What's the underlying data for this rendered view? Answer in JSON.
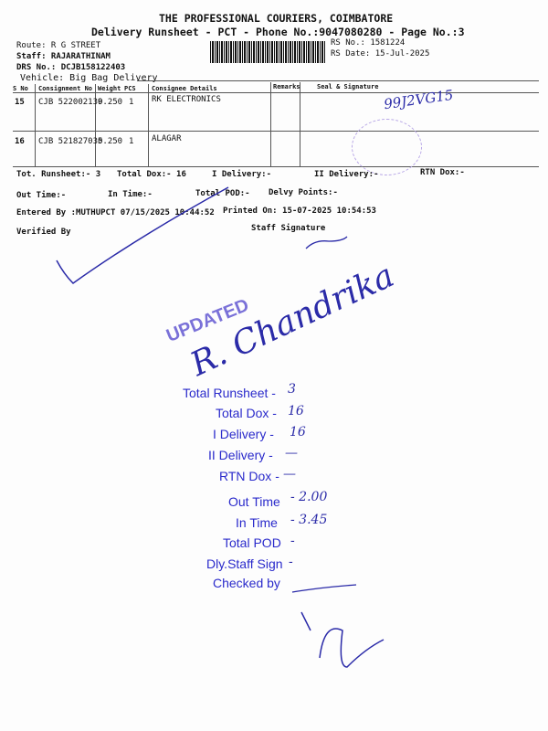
{
  "header": {
    "company": "THE PROFESSIONAL COURIERS, COIMBATORE",
    "subtitle": "Delivery Runsheet - PCT - Phone No.:9047080280 - Page No.:3",
    "route": "Route: R G STREET",
    "staff": "Staff: RAJARATHINAM",
    "drs": "DRS No.: DCJB158122403",
    "vehicle": "Vehicle: Big Bag Delivery",
    "rs_no": "RS No.: 1581224",
    "rs_date": "RS Date: 15-Jul-2025"
  },
  "table": {
    "columns": [
      "S No",
      "Consignment No",
      "Weight",
      "PCS",
      "Consignee Details",
      "Remarks",
      "Seal & Signature"
    ],
    "rows": [
      {
        "sno": "15",
        "consignment": "CJB 522002139",
        "weight": "0.250",
        "pcs": "1",
        "consignee": "RK ELECTRONICS",
        "signature": "99J2VG15"
      },
      {
        "sno": "16",
        "consignment": "CJB 521827035",
        "weight": "0.250",
        "pcs": "1",
        "consignee": "ALAGAR"
      }
    ]
  },
  "summary": {
    "tot_runsheet": "Tot. Runsheet:- 3",
    "total_dox": "Total Dox:-  16",
    "i_delivery": "I Delivery:-",
    "ii_delivery": "II Delivery:-",
    "rtn_dox": "RTN Dox:-",
    "out_time": "Out Time:-",
    "in_time": "In Time:-",
    "total_pod": "Total POD:-",
    "delvy_points": "Delvy Points:-",
    "entered_by": "Entered By :MUTHUPCT 07/15/2025 10:44:52",
    "printed_on": "Printed On: 15-07-2025 10:54:53",
    "verified_by": "Verified By",
    "staff_signature": "Staff Signature"
  },
  "handwritten": {
    "name": "R. Chandrika",
    "stamp": "UPDATED"
  },
  "stamp_list": [
    {
      "label": "Total Runsheet -",
      "value": "3"
    },
    {
      "label": "Total Dox -",
      "value": "16"
    },
    {
      "label": "I Delivery -",
      "value": "16"
    },
    {
      "label": "II Delivery -",
      "value": "—"
    },
    {
      "label": "RTN Dox -",
      "value": "—"
    },
    {
      "label": "Out Time",
      "value": "- 2.00"
    },
    {
      "label": "In Time",
      "value": "- 3.45"
    },
    {
      "label": "Total POD",
      "value": "-"
    },
    {
      "label": "Dly.Staff Sign",
      "value": "-"
    },
    {
      "label": "Checked by",
      "value": ""
    }
  ],
  "colors": {
    "ink": "#2a2acb",
    "stamp": "#5a4fd0"
  }
}
